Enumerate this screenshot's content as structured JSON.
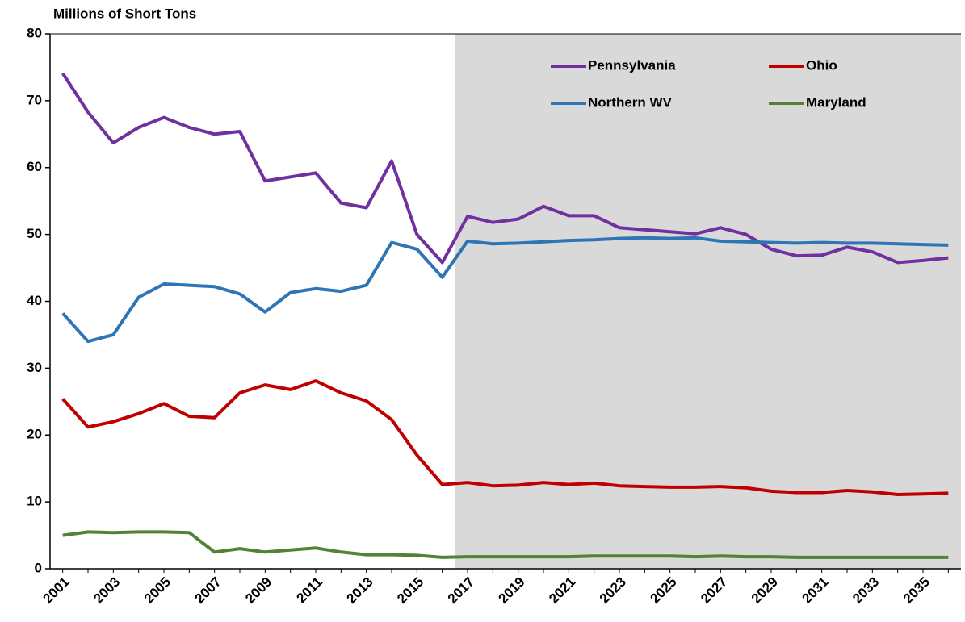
{
  "chart_data": {
    "type": "line",
    "title": "Millions of Short Tons",
    "categories": [
      "2001",
      null,
      "2003",
      null,
      "2005",
      null,
      "2007",
      null,
      "2009",
      null,
      "2011",
      null,
      "2013",
      null,
      "2015",
      null,
      "2017",
      null,
      "2019",
      null,
      "2021",
      null,
      "2023",
      null,
      "2025",
      null,
      "2027",
      null,
      "2029",
      null,
      "2031",
      null,
      "2033",
      null,
      "2035",
      null
    ],
    "series": [
      {
        "name": "Pennsylvania",
        "color": "#7030a0",
        "values": [
          74.1,
          68.3,
          63.7,
          66,
          67.5,
          66,
          65,
          65.4,
          58,
          58.6,
          59.2,
          54.7,
          54,
          61,
          50,
          45.8,
          52.7,
          51.8,
          52.3,
          54.2,
          52.8,
          52.8,
          51,
          50.7,
          50.4,
          50.1,
          51,
          50,
          47.8,
          46.8,
          46.9,
          48.1,
          47.4,
          45.8,
          46.1,
          46.5
        ]
      },
      {
        "name": "Ohio",
        "color": "#c00000",
        "values": [
          25.4,
          21.2,
          22,
          23.2,
          24.7,
          22.8,
          22.6,
          26.3,
          27.5,
          26.8,
          28.1,
          26.3,
          25.1,
          22.3,
          17,
          12.6,
          12.9,
          12.4,
          12.5,
          12.9,
          12.6,
          12.8,
          12.4,
          12.3,
          12.2,
          12.2,
          12.3,
          12.1,
          11.6,
          11.4,
          11.4,
          11.7,
          11.5,
          11.1,
          11.2,
          11.3
        ]
      },
      {
        "name": "Northern WV",
        "color": "#2e75b6",
        "values": [
          38.2,
          34,
          35,
          40.6,
          42.6,
          42.4,
          42.2,
          41.1,
          38.4,
          41.3,
          41.9,
          41.5,
          42.4,
          48.8,
          47.8,
          43.6,
          49,
          48.6,
          48.7,
          48.9,
          49.1,
          49.2,
          49.4,
          49.5,
          49.4,
          49.5,
          49,
          48.9,
          48.8,
          48.7,
          48.8,
          48.7,
          48.7,
          48.6,
          48.5,
          48.4
        ]
      },
      {
        "name": "Maryland",
        "color": "#548235",
        "values": [
          5,
          5.5,
          5.4,
          5.5,
          5.5,
          5.4,
          2.5,
          3,
          2.5,
          2.8,
          3.1,
          2.5,
          2.1,
          2.1,
          2,
          1.7,
          1.8,
          1.8,
          1.8,
          1.8,
          1.8,
          1.9,
          1.9,
          1.9,
          1.9,
          1.8,
          1.9,
          1.8,
          1.8,
          1.7,
          1.7,
          1.7,
          1.7,
          1.7,
          1.7,
          1.7
        ]
      }
    ],
    "ylim": [
      0,
      80
    ],
    "yticks": [
      0,
      10,
      20,
      30,
      40,
      50,
      60,
      70,
      80
    ],
    "grid": false,
    "legend": "upper right",
    "shaded_region": {
      "from": "2017",
      "color": "#d9d9d9"
    }
  }
}
